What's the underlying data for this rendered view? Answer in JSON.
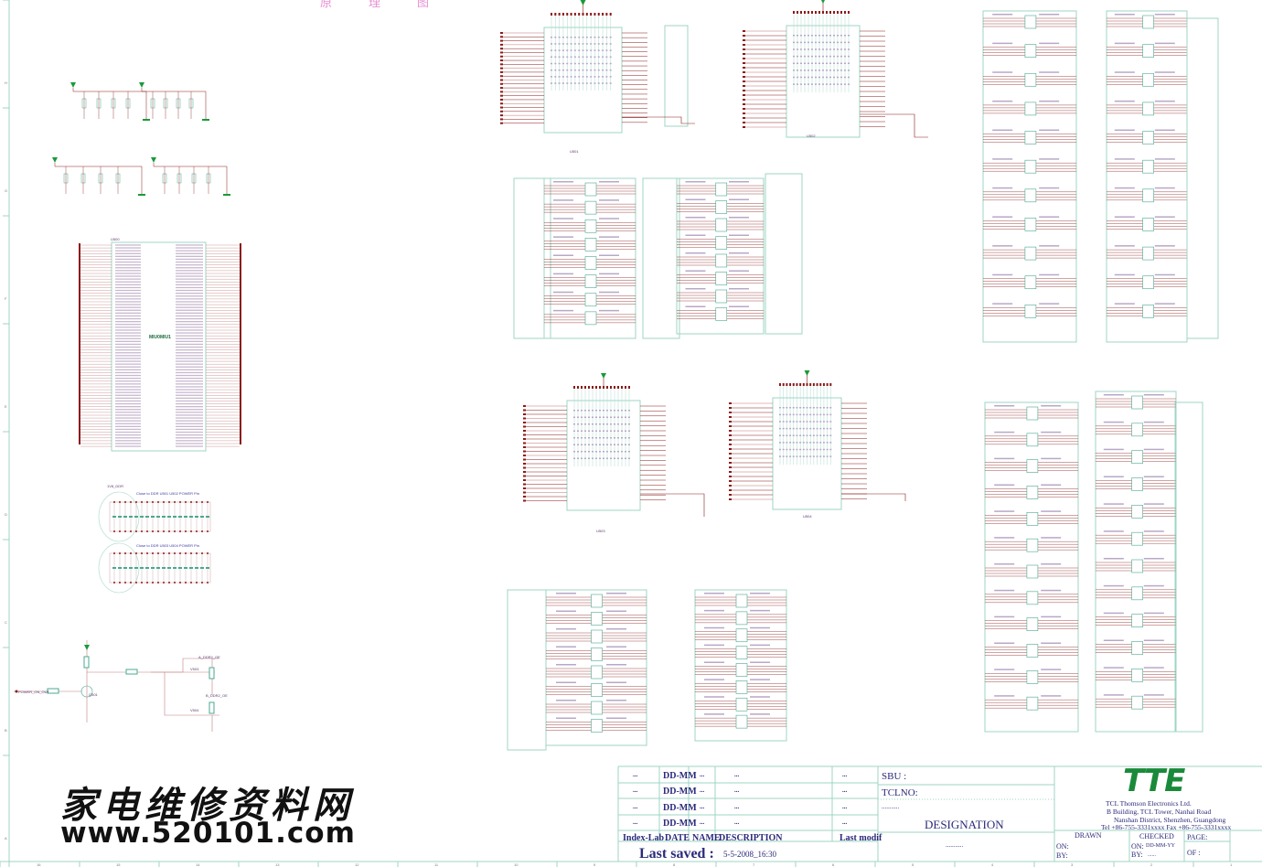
{
  "sheet": {
    "top_title_fragment": "原理图",
    "column_markers": [
      "16",
      "15",
      "14",
      "13",
      "12",
      "11",
      "10",
      "9",
      "8",
      "7",
      "6",
      "5",
      "4",
      "3",
      "2",
      "1"
    ],
    "row_markers": [
      "H",
      "G",
      "F",
      "E",
      "D",
      "C",
      "B",
      "A"
    ]
  },
  "schematic": {
    "ddr_chips": [
      "U501",
      "U502",
      "U503",
      "U504"
    ],
    "connector_ref": "U500",
    "connector_label": "MIU0MIU1",
    "decoupling_note_1": "Close to DDR U501 U502 POWER Pin",
    "decoupling_note_2": "Close to DDR U503 U504 POWER Pin",
    "power_rail": "1V8_DDR",
    "power_on_net": "POWER_ON_OUT",
    "transistor_ref": "Q501",
    "mosfet_refs": [
      "V503",
      "V504"
    ],
    "net_a": "A_DDR2_OE",
    "net_b": "B_DDR2_OE",
    "colors": {
      "wire": "#8b1a1a",
      "part": "#4aa890",
      "label": "#5a3a6a",
      "rail": "#1a9a3a",
      "title": "#2a2a7a",
      "logo": "#1a8a3a"
    }
  },
  "watermark": {
    "chinese": "家电维修资料网",
    "url": "www.520101.com"
  },
  "title_block": {
    "revisions": [
      {
        "index": "...",
        "date": "DD-MM",
        "name": "...",
        "description": "...",
        "last_modif": "..."
      },
      {
        "index": "...",
        "date": "DD-MM",
        "name": "...",
        "description": "...",
        "last_modif": "..."
      },
      {
        "index": "...",
        "date": "DD-MM",
        "name": "...",
        "description": "...",
        "last_modif": "..."
      },
      {
        "index": "...",
        "date": "DD-MM",
        "name": "...",
        "description": "...",
        "last_modif": "..."
      }
    ],
    "headers": {
      "index": "Index-Lab",
      "date": "DATE",
      "name": "NAME",
      "description": "DESCRIPTION",
      "last_modif": "Last modif"
    },
    "last_saved_label": "Last saved :",
    "last_saved_value": "5-5-2008_16:30",
    "sbu": "SBU :",
    "tclno": "TCLNO:",
    "dots1": "...........",
    "designation": "DESIGNATION",
    "dots2": "...........",
    "logo": "TTE",
    "company": "TCL Thomson Electronics Ltd.",
    "address1": "B Building, TCL Tower, Nanhai Road",
    "address2": "Nanshan District, Shenzhen, Guangdong",
    "contact": "Tel +86-755-3331xxxx    Fax +86-755-3331xxxx",
    "drawn": "DRAWN",
    "checked": "CHECKED",
    "page": "PAGE:",
    "on1": "ON:",
    "by1": "BY:",
    "on2": "ON:",
    "on2_value": "DD-MM-YY",
    "by2": "BY:",
    "by2_value": "......",
    "of": "OF :"
  }
}
